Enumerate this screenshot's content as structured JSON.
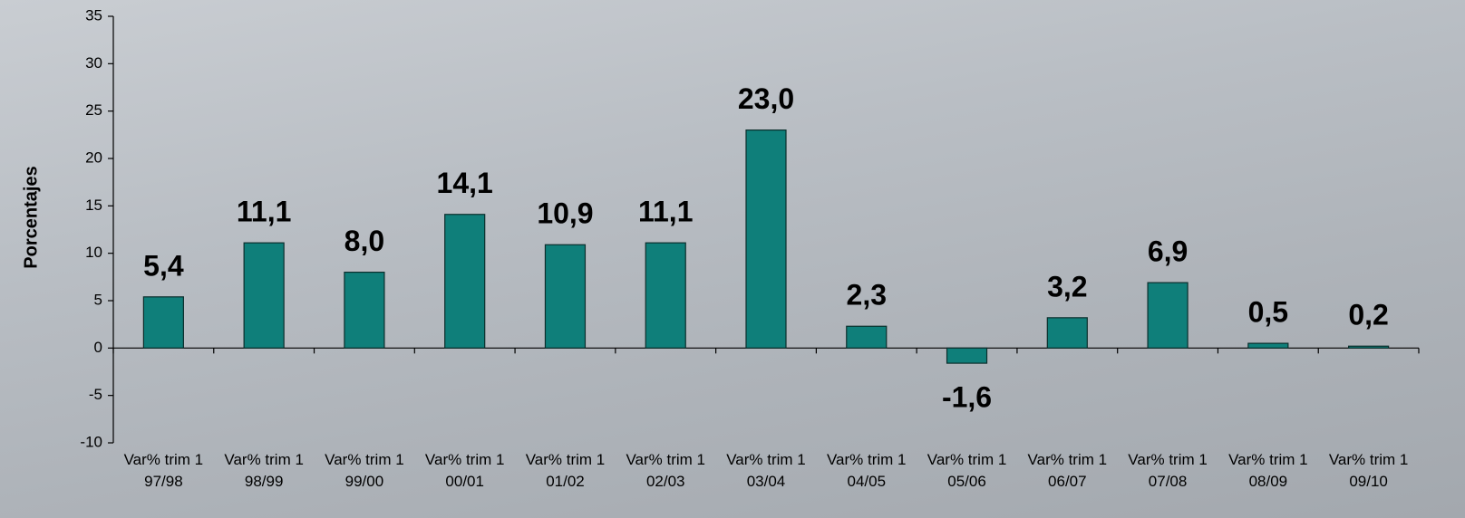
{
  "chart_data": {
    "type": "bar",
    "y_label": "Porcentajes",
    "categories": [
      [
        "Var% trim 1",
        "97/98"
      ],
      [
        "Var% trim 1",
        "98/99"
      ],
      [
        "Var% trim 1",
        "99/00"
      ],
      [
        "Var% trim 1",
        "00/01"
      ],
      [
        "Var% trim 1",
        "01/02"
      ],
      [
        "Var% trim 1",
        "02/03"
      ],
      [
        "Var% trim 1",
        "03/04"
      ],
      [
        "Var% trim 1",
        "04/05"
      ],
      [
        "Var% trim 1",
        "05/06"
      ],
      [
        "Var% trim 1",
        "06/07"
      ],
      [
        "Var% trim 1",
        "07/08"
      ],
      [
        "Var% trim 1",
        "08/09"
      ],
      [
        "Var% trim 1",
        "09/10"
      ]
    ],
    "values": [
      5.4,
      11.1,
      8.0,
      14.1,
      10.9,
      11.1,
      23.0,
      2.3,
      -1.6,
      3.2,
      6.9,
      0.5,
      0.2
    ],
    "value_labels": [
      "5,4",
      "11,1",
      "8,0",
      "14,1",
      "10,9",
      "11,1",
      "23,0",
      "2,3",
      "-1,6",
      "3,2",
      "6,9",
      "0,5",
      "0,2"
    ],
    "color": "#0f7f7a",
    "ylim": [
      -10,
      35
    ],
    "yticks": [
      -10,
      -5,
      0,
      5,
      10,
      15,
      20,
      25,
      30,
      35
    ],
    "grid": false
  }
}
